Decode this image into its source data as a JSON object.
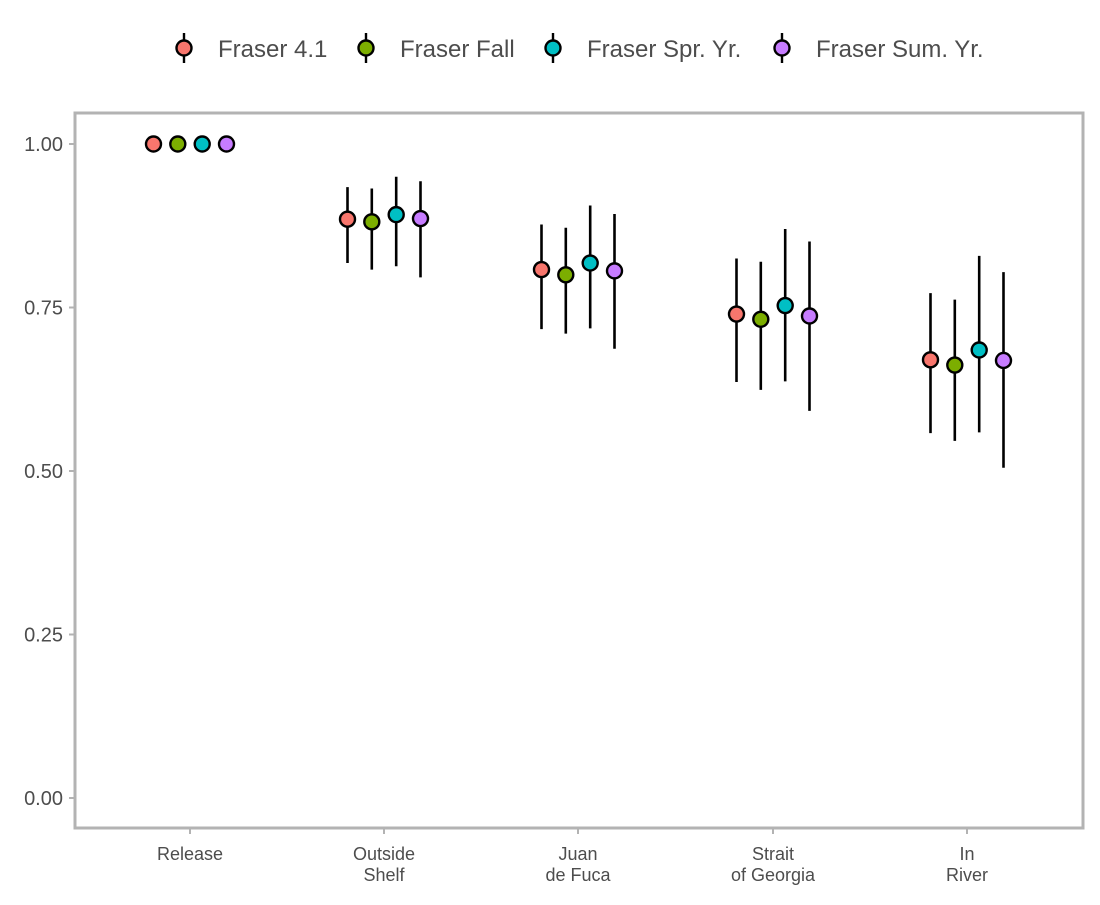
{
  "chart_data": {
    "type": "scatter",
    "categories": [
      [
        "Release"
      ],
      [
        "Outside",
        "Shelf"
      ],
      [
        "Juan",
        "de Fuca"
      ],
      [
        "Strait",
        "of Georgia"
      ],
      [
        "In",
        "River"
      ]
    ],
    "series": [
      {
        "name": "Fraser 4.1",
        "color": "#F8766D",
        "values": [
          1.0,
          0.885,
          0.808,
          0.74,
          0.67
        ],
        "lower": [
          1.0,
          0.818,
          0.717,
          0.636,
          0.558
        ],
        "upper": [
          1.0,
          0.934,
          0.877,
          0.825,
          0.772
        ]
      },
      {
        "name": "Fraser Fall",
        "color": "#7CAE00",
        "values": [
          1.0,
          0.881,
          0.8,
          0.732,
          0.662
        ],
        "lower": [
          1.0,
          0.808,
          0.71,
          0.624,
          0.546
        ],
        "upper": [
          1.0,
          0.932,
          0.872,
          0.82,
          0.762
        ]
      },
      {
        "name": "Fraser Spr. Yr.",
        "color": "#00BFC4",
        "values": [
          1.0,
          0.892,
          0.818,
          0.753,
          0.685
        ],
        "lower": [
          1.0,
          0.813,
          0.718,
          0.637,
          0.559
        ],
        "upper": [
          1.0,
          0.95,
          0.906,
          0.87,
          0.829
        ]
      },
      {
        "name": "Fraser Sum. Yr.",
        "color": "#C77CFF",
        "values": [
          1.0,
          0.886,
          0.806,
          0.737,
          0.669
        ],
        "lower": [
          1.0,
          0.796,
          0.687,
          0.592,
          0.505
        ],
        "upper": [
          1.0,
          0.943,
          0.893,
          0.851,
          0.804
        ]
      }
    ],
    "yticks": [
      "0.00",
      "0.25",
      "0.50",
      "0.75",
      "1.00"
    ],
    "ylim": [
      -0.05,
      1.045
    ],
    "legend": "top",
    "grid": false,
    "title": "",
    "xlabel": "",
    "ylabel": ""
  }
}
